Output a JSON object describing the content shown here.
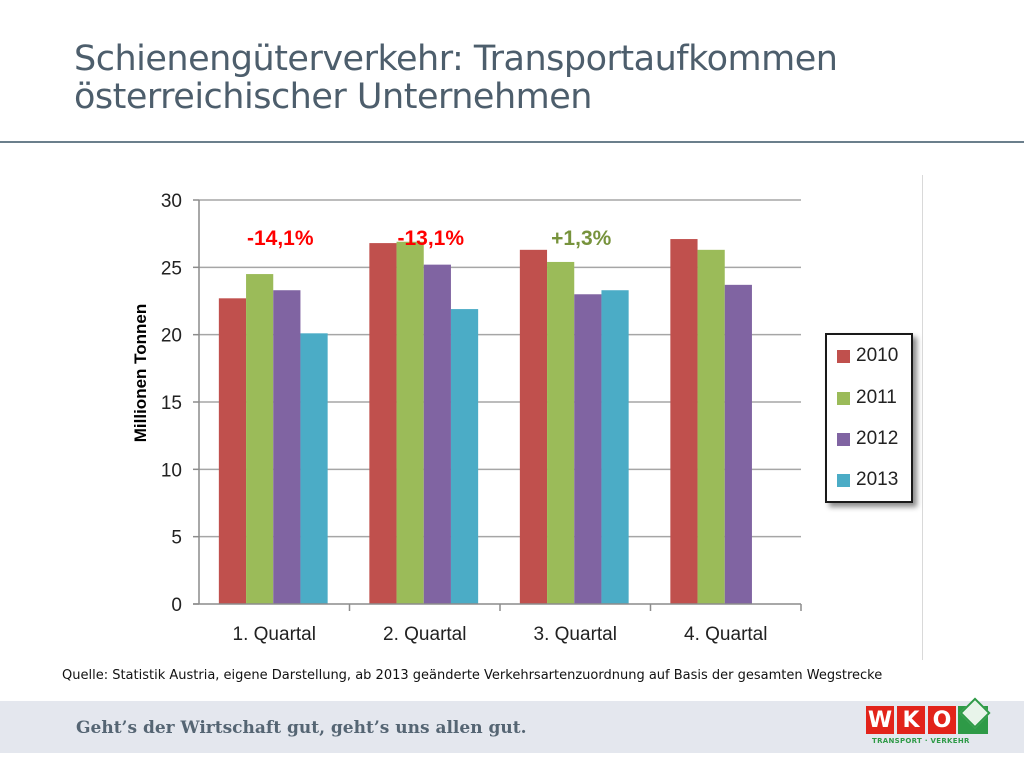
{
  "slide": {
    "title_line1": "Schienengüterverkehr: Transportaufkommen",
    "title_line2": "österreichischer Unternehmen",
    "source": "Quelle: Statistik Austria, eigene Darstellung, ab 2013 geänderte Verkehrsartenzuordnung auf Basis der gesamten Wegstrecke",
    "slogan": "Geht’s der Wirtschaft gut, geht’s uns allen gut.",
    "logo": {
      "letters": [
        "W",
        "K",
        "O"
      ],
      "subtitle": "TRANSPORT · VERKEHR",
      "red": "#e2231a",
      "green": "#2e9a47"
    }
  },
  "chart_data": {
    "type": "bar",
    "title": "",
    "xlabel": "",
    "ylabel": "Millionen Tonnen",
    "ylim": [
      0,
      30
    ],
    "yticks": [
      0,
      5,
      10,
      15,
      20,
      25,
      30
    ],
    "grid": true,
    "legend_position": "right",
    "categories": [
      "1. Quartal",
      "2. Quartal",
      "3. Quartal",
      "4. Quartal"
    ],
    "series": [
      {
        "name": "2010",
        "color": "#c0504d",
        "values": [
          22.7,
          26.8,
          26.3,
          27.1
        ]
      },
      {
        "name": "2011",
        "color": "#9bbb59",
        "values": [
          24.5,
          26.9,
          25.4,
          26.3
        ]
      },
      {
        "name": "2012",
        "color": "#8064a2",
        "values": [
          23.3,
          25.2,
          23.0,
          23.7
        ]
      },
      {
        "name": "2013",
        "color": "#4bacc6",
        "values": [
          20.1,
          21.9,
          23.3,
          null
        ]
      }
    ],
    "annotations": [
      {
        "category": "1. Quartal",
        "text": "-14,1%",
        "color": "#ff0000"
      },
      {
        "category": "2. Quartal",
        "text": "-13,1%",
        "color": "#ff0000"
      },
      {
        "category": "3. Quartal",
        "text": "+1,3%",
        "color": "#77933c"
      }
    ]
  }
}
